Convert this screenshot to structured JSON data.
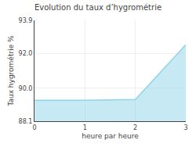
{
  "chart_data": {
    "type": "area",
    "title": "Evolution du taux d’hygrométrie",
    "xlabel": "heure par heure",
    "ylabel": "Taux hygrométrie %",
    "x": [
      0,
      1,
      2,
      3
    ],
    "values": [
      89.3,
      89.3,
      89.35,
      92.5
    ],
    "color": "#8dd4e8",
    "xlim": [
      0,
      3
    ],
    "xticks": [
      0,
      1,
      2,
      3
    ],
    "ylim": [
      88.1,
      93.9
    ],
    "yticks": [
      88.1,
      {
        "value": 90,
        "label": "90.0"
      },
      {
        "value": 92,
        "label": "92.0"
      },
      93.9
    ],
    "grid": true
  }
}
